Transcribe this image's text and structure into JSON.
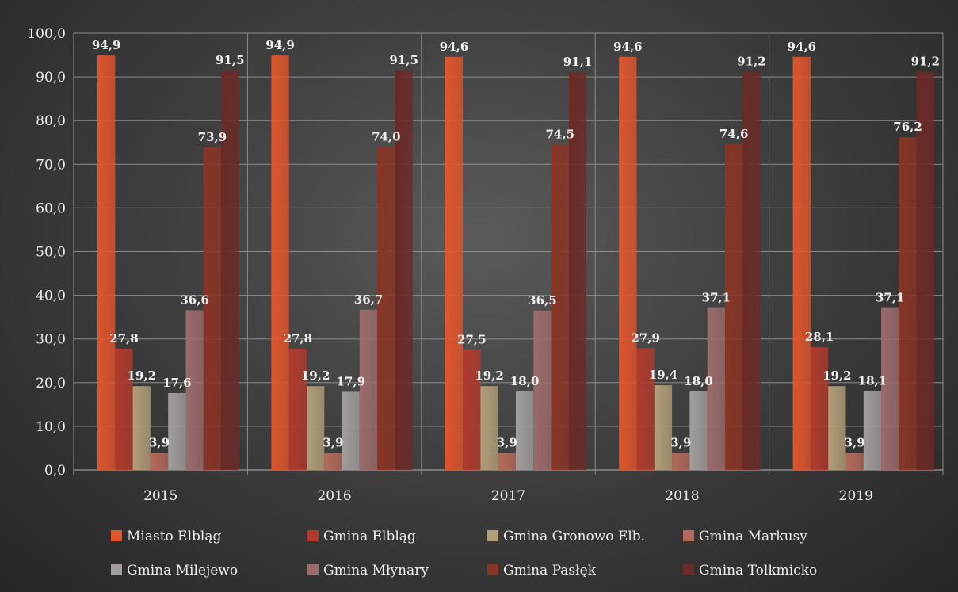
{
  "chart_data": {
    "type": "bar",
    "categories": [
      "2015",
      "2016",
      "2017",
      "2018",
      "2019"
    ],
    "ylim": [
      0,
      100
    ],
    "yticks": [
      "0,0",
      "10,0",
      "20,0",
      "30,0",
      "40,0",
      "50,0",
      "60,0",
      "70,0",
      "80,0",
      "90,0",
      "100,0"
    ],
    "grid": true,
    "legend_position": "bottom",
    "series": [
      {
        "name": "Miasto Elbląg",
        "color": "#e0552c",
        "values": [
          94.9,
          94.9,
          94.6,
          94.6,
          94.6
        ],
        "labels": [
          "94,9",
          "94,9",
          "94,6",
          "94,6",
          "94,6"
        ]
      },
      {
        "name": "Gmina Elbląg",
        "color": "#b13a2c",
        "values": [
          27.8,
          27.8,
          27.5,
          27.9,
          28.1
        ],
        "labels": [
          "27,8",
          "27,8",
          "27,5",
          "27,9",
          "28,1"
        ]
      },
      {
        "name": "Gmina Gronowo Elb.",
        "color": "#b29e78",
        "values": [
          19.2,
          19.2,
          19.2,
          19.4,
          19.2
        ],
        "labels": [
          "19,2",
          "19,2",
          "19,2",
          "19,4",
          "19,2"
        ]
      },
      {
        "name": "Gmina Markusy",
        "color": "#b46a5a",
        "values": [
          3.9,
          3.9,
          3.9,
          3.9,
          3.9
        ],
        "labels": [
          "3,9",
          "3,9",
          "3,9",
          "3,9",
          "3,9"
        ]
      },
      {
        "name": "Gmina Milejewo",
        "color": "#a39e9e",
        "values": [
          17.6,
          17.9,
          18.0,
          18.0,
          18.1
        ],
        "labels": [
          "17,6",
          "17,9",
          "18,0",
          "18,0",
          "18,1"
        ]
      },
      {
        "name": "Gmina Młynary",
        "color": "#9c6b6b",
        "values": [
          36.6,
          36.7,
          36.5,
          37.1,
          37.1
        ],
        "labels": [
          "36,6",
          "36,7",
          "36,5",
          "37,1",
          "37,1"
        ]
      },
      {
        "name": "Gmina Pasłęk",
        "color": "#8a3424",
        "values": [
          73.9,
          74.0,
          74.5,
          74.6,
          76.2
        ],
        "labels": [
          "73,9",
          "74,0",
          "74,5",
          "74,6",
          "76,2"
        ]
      },
      {
        "name": "Gmina Tolkmicko",
        "color": "#6b2a26",
        "values": [
          91.5,
          91.5,
          91.1,
          91.2,
          91.2
        ],
        "labels": [
          "91,5",
          "91,5",
          "91,1",
          "91,2",
          "91,2"
        ]
      }
    ]
  }
}
